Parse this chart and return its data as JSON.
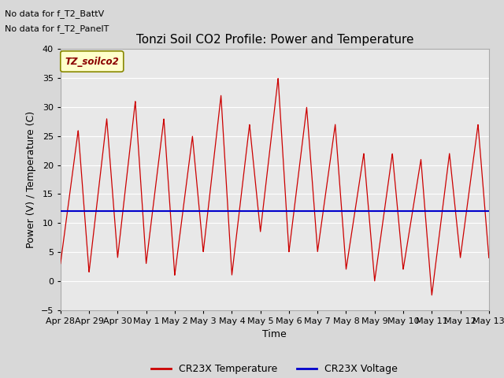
{
  "title": "Tonzi Soil CO2 Profile: Power and Temperature",
  "xlabel": "Time",
  "ylabel": "Power (V) / Temperature (C)",
  "ylim": [
    -5,
    40
  ],
  "yticks": [
    -5,
    0,
    5,
    10,
    15,
    20,
    25,
    30,
    35,
    40
  ],
  "fig_bg_color": "#d8d8d8",
  "plot_bg_color": "#e8e8e8",
  "text_above1": "No data for f_T2_BattV",
  "text_above2": "No data for f_T2_PanelT",
  "legend_box_label": "TZ_soilco2",
  "legend_box_color": "#ffffcc",
  "legend_box_border": "#888800",
  "temp_color": "#cc0000",
  "volt_color": "#0000cc",
  "volt_value": 12.0,
  "date_labels": [
    "Apr 28",
    "Apr 29",
    "Apr 30",
    "May 1",
    "May 2",
    "May 3",
    "May 4",
    "May 5",
    "May 6",
    "May 7",
    "May 8",
    "May 9",
    "May 10",
    "May 11",
    "May 12",
    "May 13"
  ],
  "n_days": 15,
  "peaks": [
    26,
    28,
    31,
    28,
    25,
    32,
    27,
    35,
    30,
    27,
    22,
    22,
    21,
    22,
    27
  ],
  "troughs": [
    3,
    1.5,
    4,
    3,
    1,
    5,
    1,
    8.5,
    5,
    5,
    2,
    0,
    2,
    -2.5,
    4
  ],
  "grid_color": "#ffffff",
  "spine_color": "#aaaaaa",
  "title_fontsize": 11,
  "label_fontsize": 9,
  "tick_fontsize": 8,
  "legend_fontsize": 9
}
